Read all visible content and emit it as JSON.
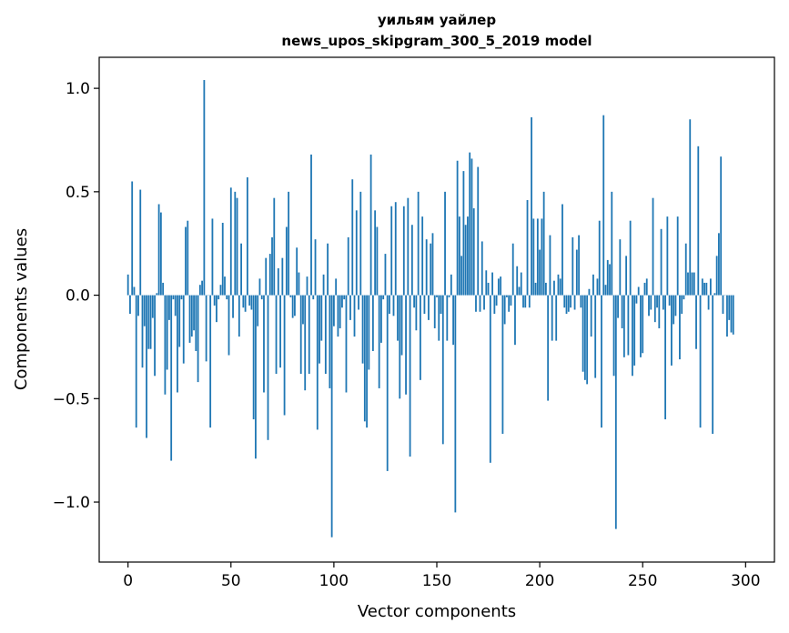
{
  "chart_data": {
    "type": "bar",
    "title_line1": "уильям уайлер",
    "title_line2": "news_upos_skipgram_300_5_2019 model",
    "xlabel": "Vector components",
    "ylabel": "Components values",
    "xlim": [
      -14,
      314
    ],
    "ylim": [
      -1.29,
      1.15
    ],
    "xticks": [
      0,
      50,
      100,
      150,
      200,
      250,
      300
    ],
    "xtick_labels": [
      "0",
      "50",
      "100",
      "150",
      "200",
      "250",
      "300"
    ],
    "yticks": [
      -1.0,
      -0.5,
      0.0,
      0.5,
      1.0
    ],
    "ytick_labels": [
      "−1.0",
      "−0.5",
      "0.0",
      "0.5",
      "1.0"
    ],
    "bar_color": "#1f77b4",
    "values": [
      0.1,
      -0.09,
      0.55,
      0.04,
      -0.64,
      -0.1,
      0.51,
      -0.35,
      -0.15,
      -0.69,
      -0.26,
      -0.26,
      -0.11,
      -0.39,
      0.01,
      0.44,
      0.4,
      0.06,
      -0.48,
      -0.36,
      -0.12,
      -0.8,
      -0.02,
      -0.1,
      -0.47,
      -0.25,
      -0.02,
      -0.33,
      0.33,
      0.36,
      -0.23,
      -0.2,
      -0.17,
      -0.27,
      -0.42,
      0.05,
      0.07,
      1.04,
      -0.32,
      0.0,
      -0.64,
      0.37,
      -0.05,
      -0.13,
      -0.02,
      0.05,
      0.35,
      0.09,
      -0.02,
      -0.29,
      0.52,
      -0.11,
      0.5,
      0.47,
      -0.2,
      0.25,
      -0.06,
      -0.08,
      0.57,
      -0.05,
      -0.07,
      -0.6,
      -0.79,
      -0.15,
      0.08,
      -0.02,
      -0.47,
      0.18,
      -0.7,
      0.2,
      0.28,
      0.47,
      -0.38,
      0.13,
      -0.35,
      0.18,
      -0.58,
      0.33,
      0.5,
      -0.01,
      -0.11,
      -0.1,
      0.23,
      0.11,
      -0.38,
      -0.14,
      -0.46,
      0.09,
      -0.38,
      0.68,
      -0.02,
      0.27,
      -0.65,
      -0.33,
      -0.22,
      0.1,
      -0.38,
      0.25,
      -0.45,
      -1.17,
      -0.15,
      0.08,
      -0.2,
      -0.16,
      -0.06,
      -0.02,
      -0.47,
      0.28,
      -0.12,
      0.56,
      -0.2,
      0.41,
      -0.07,
      0.5,
      -0.33,
      -0.61,
      -0.64,
      -0.36,
      0.68,
      -0.27,
      0.41,
      0.33,
      -0.45,
      -0.23,
      -0.02,
      0.2,
      -0.85,
      -0.09,
      0.43,
      -0.1,
      0.45,
      -0.22,
      -0.5,
      -0.29,
      0.43,
      -0.48,
      0.47,
      -0.78,
      0.34,
      -0.06,
      -0.17,
      0.5,
      -0.41,
      0.38,
      -0.09,
      0.27,
      -0.12,
      0.25,
      0.3,
      -0.16,
      -0.01,
      -0.22,
      -0.09,
      -0.72,
      0.5,
      -0.22,
      -0.01,
      0.1,
      -0.24,
      -1.05,
      0.65,
      0.38,
      0.19,
      0.6,
      0.34,
      0.38,
      0.69,
      0.66,
      0.42,
      -0.08,
      0.62,
      -0.08,
      0.26,
      -0.07,
      0.12,
      0.06,
      -0.81,
      0.11,
      -0.09,
      -0.05,
      0.08,
      0.09,
      -0.67,
      -0.14,
      -0.01,
      -0.08,
      -0.05,
      0.25,
      -0.24,
      0.14,
      0.04,
      0.11,
      -0.06,
      -0.06,
      0.46,
      -0.06,
      0.86,
      0.37,
      0.06,
      0.37,
      0.22,
      0.37,
      0.5,
      0.06,
      -0.51,
      0.29,
      -0.22,
      0.07,
      -0.22,
      0.1,
      0.08,
      0.44,
      -0.06,
      -0.09,
      -0.08,
      -0.06,
      0.28,
      -0.07,
      0.22,
      0.29,
      -0.06,
      -0.37,
      -0.41,
      -0.43,
      0.03,
      -0.2,
      0.1,
      -0.4,
      0.08,
      0.36,
      -0.64,
      0.87,
      0.05,
      0.17,
      0.15,
      0.5,
      -0.39,
      -1.13,
      -0.11,
      0.27,
      -0.16,
      -0.3,
      0.19,
      -0.29,
      0.36,
      -0.39,
      -0.34,
      -0.04,
      0.04,
      -0.3,
      -0.28,
      0.06,
      0.08,
      -0.1,
      -0.07,
      0.47,
      -0.13,
      -0.06,
      -0.16,
      0.32,
      -0.07,
      -0.6,
      0.38,
      -0.05,
      -0.34,
      -0.14,
      -0.1,
      0.38,
      -0.31,
      -0.09,
      -0.02,
      0.25,
      0.11,
      0.85,
      0.11,
      0.11,
      -0.26,
      0.72,
      -0.64,
      0.08,
      0.06,
      0.06,
      -0.07,
      0.08,
      -0.67,
      0.01,
      0.19,
      0.3,
      0.67,
      -0.09,
      0.0,
      -0.2,
      -0.12,
      -0.18,
      -0.19
    ]
  }
}
